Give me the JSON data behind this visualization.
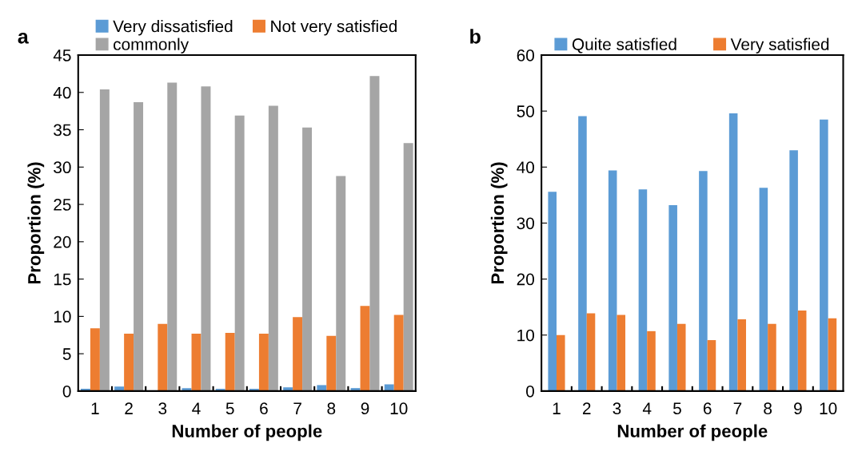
{
  "chart_data": [
    {
      "type": "bar",
      "title": "a",
      "xlabel": "Number of people",
      "ylabel": "Proportion (%)",
      "categories": [
        "1",
        "2",
        "3",
        "4",
        "5",
        "6",
        "7",
        "8",
        "9",
        "10"
      ],
      "series": [
        {
          "name": "Very dissatisfied",
          "color": "#5b9bd5",
          "values": [
            0.3,
            0.6,
            0.0,
            0.4,
            0.3,
            0.3,
            0.5,
            0.8,
            0.4,
            0.9
          ]
        },
        {
          "name": "Not very satisfied",
          "color": "#ed7d31",
          "values": [
            8.4,
            7.7,
            9.0,
            7.7,
            7.8,
            7.7,
            9.9,
            7.4,
            11.4,
            10.2
          ]
        },
        {
          "name": "commonly",
          "color": "#a5a5a5",
          "values": [
            40.4,
            38.7,
            41.3,
            40.8,
            36.9,
            38.2,
            35.3,
            28.8,
            42.2,
            33.2
          ]
        }
      ],
      "ylim": [
        0,
        45
      ],
      "yticks": [
        0,
        5,
        10,
        15,
        20,
        25,
        30,
        35,
        40,
        45
      ],
      "grid": false,
      "legend": "top"
    },
    {
      "type": "bar",
      "title": "b",
      "xlabel": "Number of people",
      "ylabel": "Proportion (%)",
      "categories": [
        "1",
        "2",
        "3",
        "4",
        "5",
        "6",
        "7",
        "8",
        "9",
        "10"
      ],
      "series": [
        {
          "name": "Quite satisfied",
          "color": "#5b9bd5",
          "values": [
            35.6,
            49.1,
            39.4,
            36.0,
            33.2,
            39.3,
            49.6,
            36.3,
            43.0,
            48.5
          ]
        },
        {
          "name": "Very satisfied",
          "color": "#ed7d31",
          "values": [
            10.0,
            13.9,
            13.6,
            10.7,
            12.0,
            9.1,
            12.8,
            12.0,
            14.4,
            13.0
          ]
        }
      ],
      "ylim": [
        0,
        60
      ],
      "yticks": [
        0,
        10,
        20,
        30,
        40,
        50,
        60
      ],
      "grid": false,
      "legend": "top"
    }
  ]
}
